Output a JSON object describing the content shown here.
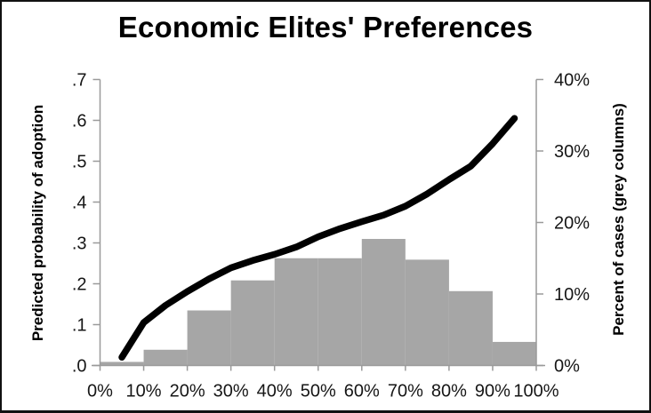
{
  "chart_data": {
    "type": "combo",
    "title": "Economic Elites' Preferences",
    "x_axis": {
      "tick_labels": [
        "0%",
        "10%",
        "20%",
        "30%",
        "40%",
        "50%",
        "60%",
        "70%",
        "80%",
        "90%",
        "100%"
      ],
      "range_percent": [
        0,
        100
      ],
      "grid": "off"
    },
    "left_y_axis": {
      "label": "Predicted probability of adoption",
      "tick_labels": [
        ".7",
        ".6",
        ".5",
        ".4",
        ".3",
        ".2",
        ".1",
        ".0"
      ],
      "tick_values": [
        0.7,
        0.6,
        0.5,
        0.4,
        0.3,
        0.2,
        0.1,
        0.0
      ],
      "range": [
        0,
        0.7
      ]
    },
    "right_y_axis": {
      "label": "Percent of cases (grey columns)",
      "tick_labels": [
        "40%",
        "30%",
        "20%",
        "10%",
        "0%"
      ],
      "tick_values": [
        40,
        30,
        20,
        10,
        0
      ],
      "range_percent": [
        0,
        40
      ]
    },
    "series": [
      {
        "name": "Predicted probability of adoption",
        "type": "line",
        "axis": "left",
        "color": "#000000",
        "points": [
          [
            5,
            0.02
          ],
          [
            10,
            0.105
          ],
          [
            15,
            0.147
          ],
          [
            20,
            0.181
          ],
          [
            25,
            0.212
          ],
          [
            30,
            0.239
          ],
          [
            35,
            0.257
          ],
          [
            40,
            0.272
          ],
          [
            45,
            0.29
          ],
          [
            50,
            0.315
          ],
          [
            55,
            0.335
          ],
          [
            60,
            0.352
          ],
          [
            65,
            0.368
          ],
          [
            70,
            0.39
          ],
          [
            75,
            0.42
          ],
          [
            80,
            0.455
          ],
          [
            85,
            0.488
          ],
          [
            90,
            0.543
          ],
          [
            95,
            0.605
          ]
        ]
      },
      {
        "name": "Percent of cases (grey columns)",
        "type": "bar",
        "axis": "right",
        "color": "#a6a6a6",
        "bins": [
          "0-10%",
          "10-20%",
          "20-30%",
          "30-40%",
          "40-50%",
          "50-60%",
          "60-70%",
          "70-80%",
          "80-90%",
          "90-100%"
        ],
        "values": [
          0.5,
          2.2,
          7.7,
          11.9,
          15,
          15,
          17.7,
          14.8,
          10.4,
          3.3
        ]
      }
    ],
    "colors": {
      "line": "#000000",
      "bar": "#a6a6a6",
      "axis": "#9a9a9a",
      "text": "#161616",
      "background": "#ffffff"
    },
    "legend": "none"
  }
}
